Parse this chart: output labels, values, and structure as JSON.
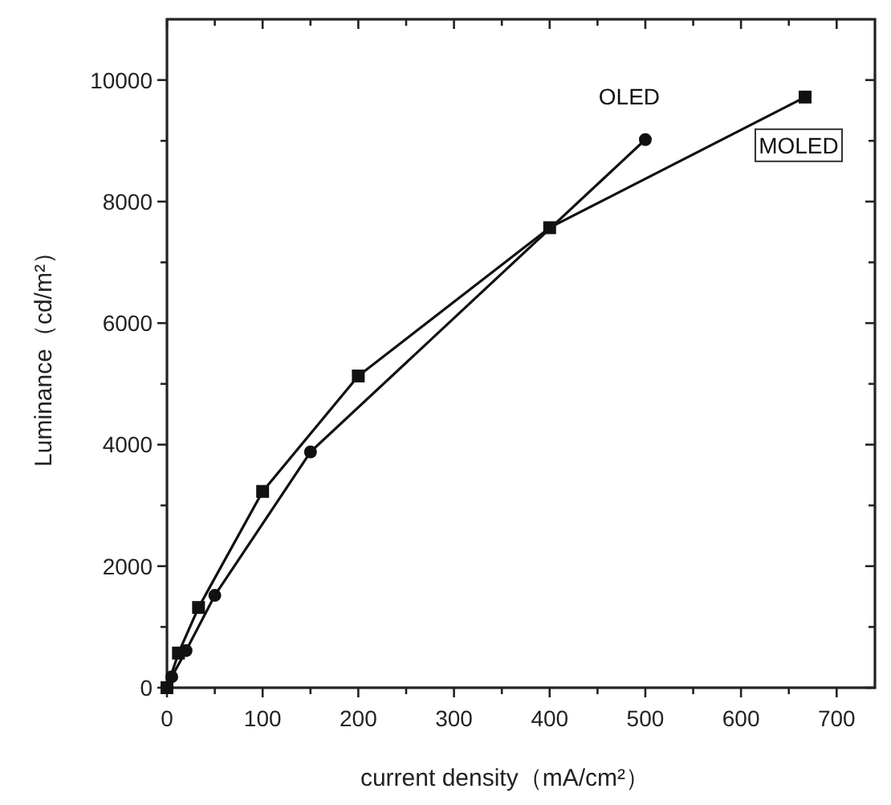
{
  "chart_data": {
    "type": "line",
    "xlabel": "current density（mA/cm²）",
    "ylabel": "Luminance（cd/m²）",
    "xlim": [
      0,
      740
    ],
    "ylim": [
      0,
      11000
    ],
    "xticks": [
      0,
      {
        "value": 50,
        "label": null
      },
      100,
      {
        "value": 150,
        "label": null
      },
      200,
      {
        "value": 250,
        "label": null
      },
      300,
      {
        "value": 350,
        "label": null
      },
      400,
      {
        "value": 450,
        "label": null
      },
      500,
      {
        "value": 550,
        "label": null
      },
      600,
      {
        "value": 650,
        "label": null
      },
      700
    ],
    "yticks": [
      0,
      {
        "value": 1000,
        "label": null
      },
      2000,
      {
        "value": 3000,
        "label": null
      },
      4000,
      {
        "value": 5000,
        "label": null
      },
      6000,
      {
        "value": 7000,
        "label": null
      },
      8000,
      {
        "value": 9000,
        "label": null
      },
      10000
    ],
    "grid": false,
    "series": [
      {
        "name": "OLED",
        "color": "#111111",
        "marker": "circle",
        "x": [
          5,
          20,
          50,
          150,
          500
        ],
        "values": [
          180,
          610,
          1520,
          3880,
          9020
        ]
      },
      {
        "name": "MOLED",
        "color": "#111111",
        "marker": "square",
        "x": [
          0,
          12,
          33,
          100,
          200,
          400,
          667
        ],
        "values": [
          0,
          570,
          1320,
          3230,
          5130,
          7570,
          9720
        ]
      }
    ]
  }
}
